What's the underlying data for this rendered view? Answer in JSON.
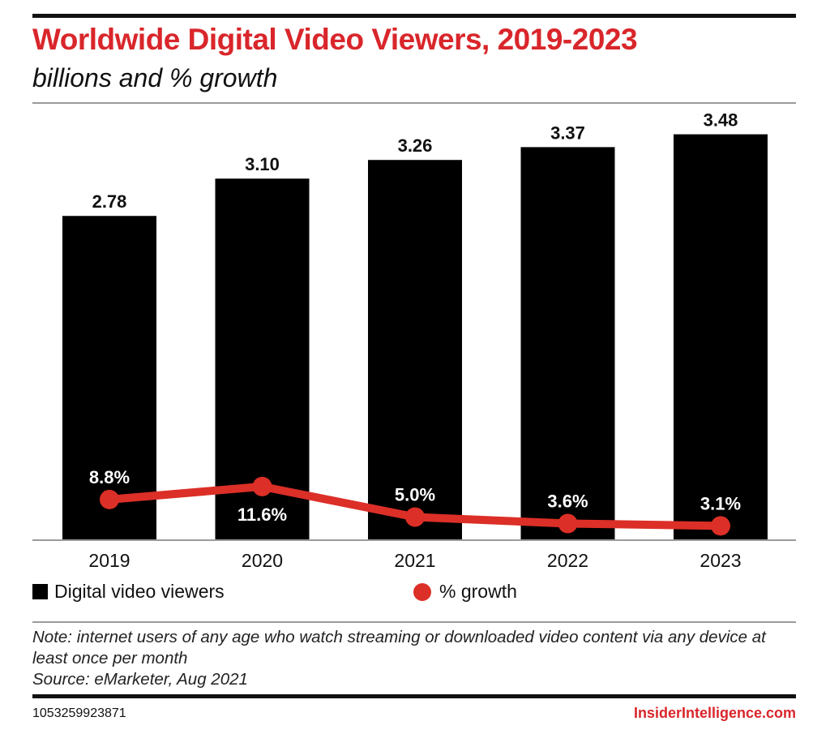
{
  "header": {
    "title": "Worldwide Digital Video Viewers, 2019-2023",
    "subtitle": "billions and % growth"
  },
  "footer": {
    "note": "Note: internet users of any age who watch streaming or downloaded video content via any device at least once per month",
    "source": "Source: eMarketer, Aug 2021",
    "chart_id": "1053259923871",
    "brand": "InsiderIntelligence.com"
  },
  "colors": {
    "title": "#d9262b",
    "bar": "#000000",
    "line": "#dc2f27",
    "brand": "#d9262b"
  },
  "chart_data": {
    "type": "bar",
    "title": "Worldwide Digital Video Viewers, 2019-2023",
    "subtitle": "billions and % growth",
    "xlabel": "",
    "ylabel": "",
    "categories": [
      "2019",
      "2020",
      "2021",
      "2022",
      "2023"
    ],
    "series": [
      {
        "name": "Digital video viewers",
        "type": "bar",
        "unit": "billions",
        "values": [
          2.78,
          3.1,
          3.26,
          3.37,
          3.48
        ],
        "labels": [
          "2.78",
          "3.10",
          "3.26",
          "3.37",
          "3.48"
        ]
      },
      {
        "name": "% growth",
        "type": "line",
        "unit": "%",
        "values": [
          8.8,
          11.6,
          5.0,
          3.6,
          3.1
        ],
        "labels": [
          "8.8%",
          "11.6%",
          "5.0%",
          "3.6%",
          "3.1%"
        ],
        "label_position": [
          "above",
          "below",
          "above",
          "above",
          "above"
        ]
      }
    ],
    "ylim": [
      0,
      3.48
    ],
    "grid": false,
    "legend": {
      "placement": "bottom",
      "entries": [
        "Digital video viewers",
        "% growth"
      ]
    }
  }
}
